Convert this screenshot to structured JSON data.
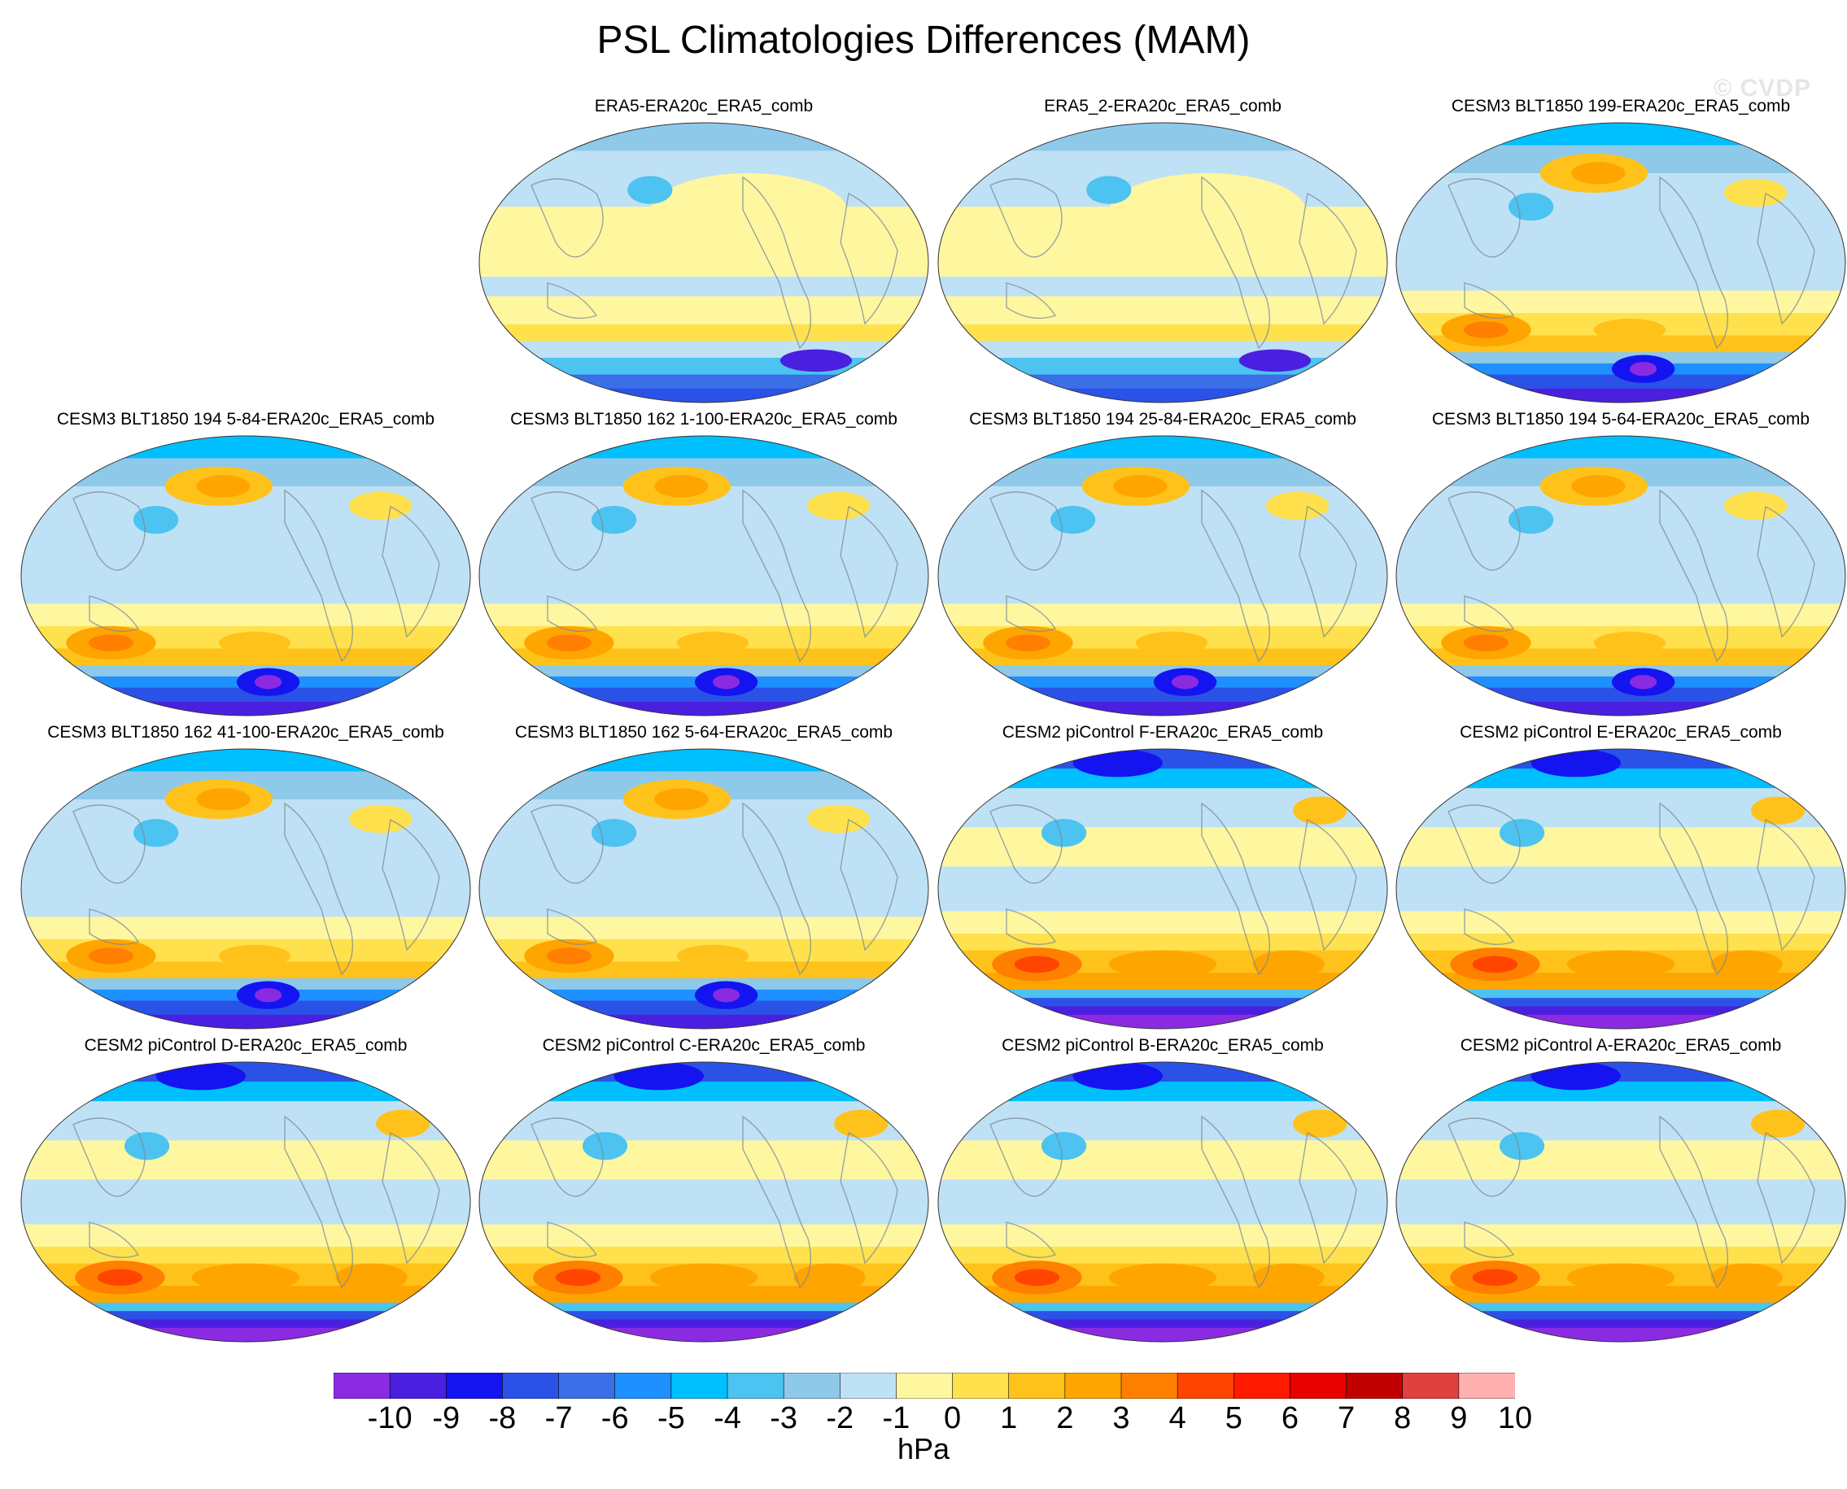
{
  "title": "PSL Climatologies Differences (MAM)",
  "watermark": "© CVDP",
  "chart_data": {
    "type": "heatmap",
    "projection": "global map panels (equal-area ellipse), Pacific-centered",
    "units": "hPa",
    "panels": [
      {
        "title": "ERA5-ERA20c_ERA5_comb",
        "row": 1,
        "col": 2,
        "pattern": "weak"
      },
      {
        "title": "ERA5_2-ERA20c_ERA5_comb",
        "row": 1,
        "col": 3,
        "pattern": "weak"
      },
      {
        "title": "CESM3 BLT1850 199-ERA20c_ERA5_comb",
        "row": 1,
        "col": 4,
        "pattern": "cesm3"
      },
      {
        "title": "CESM3 BLT1850 194 5-84-ERA20c_ERA5_comb",
        "row": 2,
        "col": 1,
        "pattern": "cesm3"
      },
      {
        "title": "CESM3 BLT1850 162 1-100-ERA20c_ERA5_comb",
        "row": 2,
        "col": 2,
        "pattern": "cesm3"
      },
      {
        "title": "CESM3 BLT1850 194 25-84-ERA20c_ERA5_comb",
        "row": 2,
        "col": 3,
        "pattern": "cesm3"
      },
      {
        "title": "CESM3 BLT1850 194 5-64-ERA20c_ERA5_comb",
        "row": 2,
        "col": 4,
        "pattern": "cesm3"
      },
      {
        "title": "CESM3 BLT1850 162 41-100-ERA20c_ERA5_comb",
        "row": 3,
        "col": 1,
        "pattern": "cesm3"
      },
      {
        "title": "CESM3 BLT1850 162 5-64-ERA20c_ERA5_comb",
        "row": 3,
        "col": 2,
        "pattern": "cesm3"
      },
      {
        "title": "CESM2 piControl F-ERA20c_ERA5_comb",
        "row": 3,
        "col": 3,
        "pattern": "cesm2"
      },
      {
        "title": "CESM2 piControl E-ERA20c_ERA5_comb",
        "row": 3,
        "col": 4,
        "pattern": "cesm2"
      },
      {
        "title": "CESM2 piControl D-ERA20c_ERA5_comb",
        "row": 4,
        "col": 1,
        "pattern": "cesm2"
      },
      {
        "title": "CESM2 piControl C-ERA20c_ERA5_comb",
        "row": 4,
        "col": 2,
        "pattern": "cesm2"
      },
      {
        "title": "CESM2 piControl B-ERA20c_ERA5_comb",
        "row": 4,
        "col": 3,
        "pattern": "cesm2"
      },
      {
        "title": "CESM2 piControl A-ERA20c_ERA5_comb",
        "row": 4,
        "col": 4,
        "pattern": "cesm2"
      }
    ],
    "colorbar": {
      "label": "hPa",
      "ticks": [
        "-10",
        "-9",
        "-8",
        "-7",
        "-6",
        "-5",
        "-4",
        "-3",
        "-2",
        "-1",
        "0",
        "1",
        "2",
        "3",
        "4",
        "5",
        "6",
        "7",
        "8",
        "9",
        "10"
      ],
      "colors": [
        "#8a2be2",
        "#4b1fe0",
        "#1414f0",
        "#2b52e6",
        "#3a6fe8",
        "#1e90ff",
        "#00bfff",
        "#4cc3f0",
        "#8ec9ea",
        "#bfe1f5",
        "#fff7a0",
        "#ffe14d",
        "#ffc21a",
        "#ffa500",
        "#ff7f00",
        "#ff4500",
        "#ff1a00",
        "#e60000",
        "#c00000",
        "#e04040",
        "#ffb0b0"
      ]
    }
  }
}
